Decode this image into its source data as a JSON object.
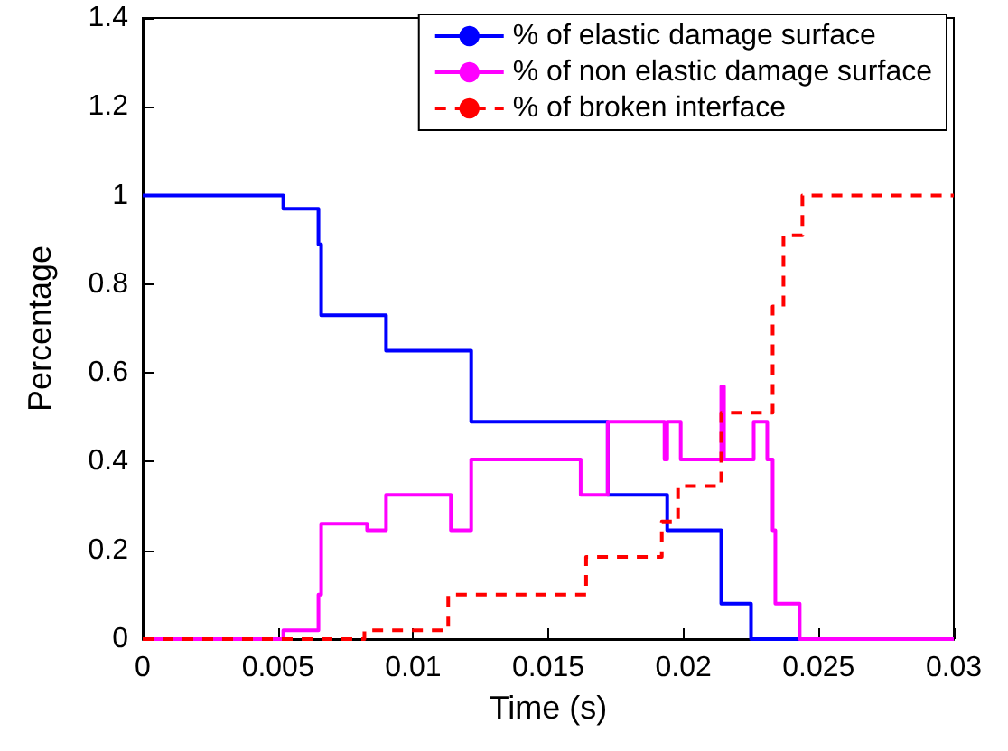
{
  "chart_data": {
    "type": "step",
    "xlabel": "Time (s)",
    "ylabel": "Percentage",
    "xlim": [
      0,
      0.03
    ],
    "xticks": [
      0,
      0.005,
      0.01,
      0.015,
      0.02,
      0.025,
      0.03
    ],
    "ylim": [
      0,
      1.4
    ],
    "yticks": [
      0,
      0.2,
      0.4,
      0.6,
      0.8,
      1,
      1.2,
      1.4
    ],
    "grid": false,
    "legend": "top right",
    "series": [
      {
        "name": "% of elastic damage surface",
        "color": "#0000ff",
        "line_style": "solid",
        "x": [
          0,
          0.0052,
          0.0065,
          0.0066,
          0.009,
          0.01215,
          0.0172,
          0.0194,
          0.0214,
          0.0225,
          0.03
        ],
        "values": [
          1,
          0.97,
          0.89,
          0.73,
          0.65,
          0.49,
          0.325,
          0.245,
          0.08,
          0,
          0
        ]
      },
      {
        "name": "% of non elastic damage surface",
        "color": "#ff00ff",
        "line_style": "solid",
        "x": [
          0,
          0.0052,
          0.0065,
          0.0066,
          0.0083,
          0.009,
          0.0114,
          0.01215,
          0.0162,
          0.0172,
          0.0193,
          0.0194,
          0.0199,
          0.0214,
          0.0215,
          0.0226,
          0.0231,
          0.0233,
          0.0234,
          0.0243,
          0.03
        ],
        "values": [
          0,
          0.02,
          0.1,
          0.26,
          0.245,
          0.325,
          0.245,
          0.405,
          0.325,
          0.49,
          0.405,
          0.49,
          0.405,
          0.57,
          0.405,
          0.49,
          0.405,
          0.245,
          0.08,
          0,
          0
        ]
      },
      {
        "name": "% of broken interface",
        "color": "#ff0000",
        "line_style": "dashed",
        "x": [
          0,
          0.0082,
          0.0113,
          0.0164,
          0.0192,
          0.0198,
          0.0214,
          0.0233,
          0.0237,
          0.0244,
          0.03
        ],
        "values": [
          0,
          0.02,
          0.1,
          0.185,
          0.265,
          0.345,
          0.51,
          0.75,
          0.91,
          1,
          1
        ]
      }
    ]
  }
}
